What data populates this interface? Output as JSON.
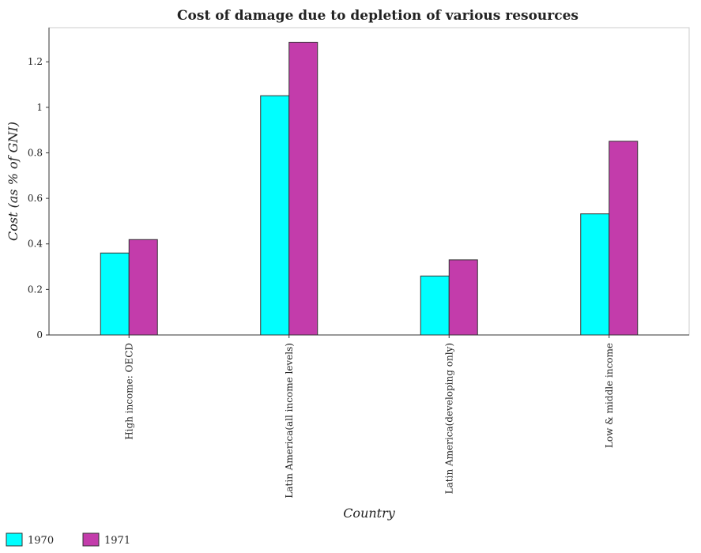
{
  "chart_data": {
    "type": "bar",
    "title": "Cost of damage due to depletion of various resources",
    "xlabel": "Country",
    "ylabel": "Cost (as % of GNI)",
    "categories": [
      "High income: OECD",
      "Latin America(all income levels)",
      "Latin America(developing only)",
      "Low & middle income"
    ],
    "series": [
      {
        "name": "1970",
        "color": "#00ffff",
        "values": [
          0.36,
          1.051,
          0.259,
          0.532
        ]
      },
      {
        "name": "1971",
        "color": "#c33cab",
        "values": [
          0.419,
          1.286,
          0.33,
          0.851
        ]
      }
    ],
    "ylim": [
      0,
      1.35
    ],
    "yticks": [
      0,
      0.2,
      0.4,
      0.6,
      0.8,
      1,
      1.2
    ],
    "ytick_labels": [
      "0",
      "0.2",
      "0.4",
      "0.6",
      "0.8",
      "1",
      "1.2"
    ],
    "grid": false,
    "legend_position": "bottom-left"
  }
}
